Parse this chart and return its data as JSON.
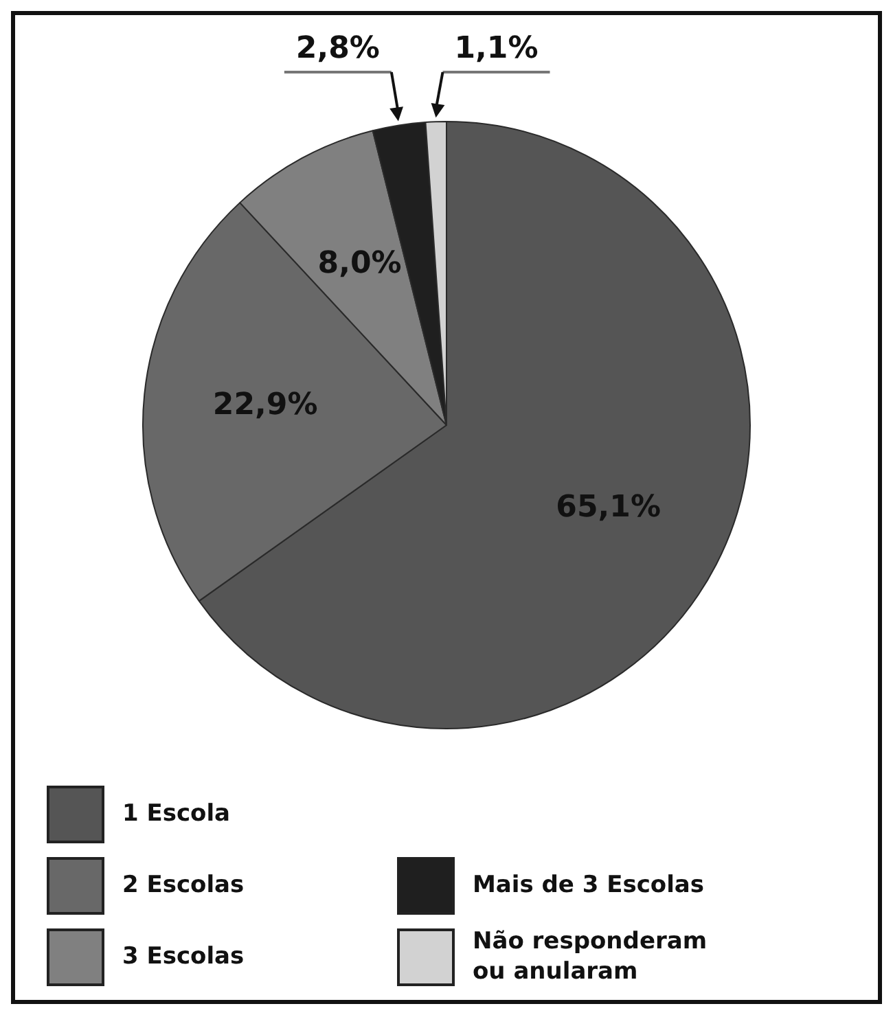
{
  "chart_data": {
    "type": "pie",
    "categories": [
      "1 Escola",
      "2 Escolas",
      "3 Escolas",
      "Mais de 3 Escolas",
      "Não responderam ou anularam"
    ],
    "values": [
      65.1,
      22.9,
      8.0,
      2.8,
      1.1
    ],
    "colors": [
      "#555555",
      "#686868",
      "#808080",
      "#1f1f1f",
      "#d2d2d2"
    ],
    "value_labels": [
      "65,1%",
      "22,9%",
      "8,0%",
      "2,8%",
      "1,1%"
    ],
    "legend": "bottom"
  }
}
